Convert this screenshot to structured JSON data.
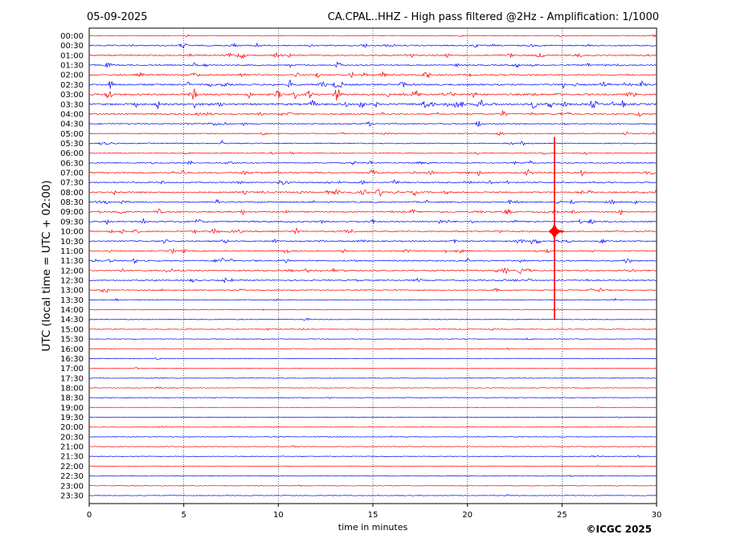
{
  "header": {
    "date": "05-09-2025",
    "title": "CA.CPAL..HHZ - High pass filtered @2Hz - Amplification: 1/1000"
  },
  "footer": {
    "copyright": "©ICGC 2025"
  },
  "chart_data": {
    "type": "line",
    "title": "CA.CPAL..HHZ - High pass filtered @2Hz - Amplification: 1/1000",
    "xlabel": "time in minutes",
    "ylabel": "UTC (local time = UTC + 02:00)",
    "xlim": [
      0,
      30
    ],
    "x_ticks": [
      "0",
      "5",
      "10",
      "15",
      "20",
      "25",
      "30"
    ],
    "vertical_gridlines_at": [
      5,
      10,
      15,
      20,
      25
    ],
    "row_labels": [
      "00:00",
      "00:30",
      "01:00",
      "01:30",
      "02:00",
      "02:30",
      "03:00",
      "03:30",
      "04:00",
      "04:30",
      "05:00",
      "05:30",
      "06:00",
      "06:30",
      "07:00",
      "07:30",
      "08:00",
      "08:30",
      "09:00",
      "09:30",
      "10:00",
      "10:30",
      "11:00",
      "11:30",
      "12:00",
      "12:30",
      "13:00",
      "13:30",
      "14:00",
      "14:30",
      "15:00",
      "15:30",
      "16:00",
      "16:30",
      "17:00",
      "17:30",
      "18:00",
      "18:30",
      "19:00",
      "19:30",
      "20:00",
      "20:30",
      "21:00",
      "21:30",
      "22:00",
      "22:30",
      "23:00",
      "23:30"
    ],
    "row_colors": [
      "#ff0000",
      "#0000ff"
    ],
    "row_activity": [
      0.12,
      0.45,
      0.5,
      0.4,
      0.5,
      0.7,
      0.75,
      0.85,
      0.5,
      0.35,
      0.25,
      0.25,
      0.2,
      0.3,
      0.45,
      0.45,
      0.6,
      0.45,
      0.5,
      0.5,
      0.5,
      0.45,
      0.35,
      0.45,
      0.45,
      0.35,
      0.3,
      0.1,
      0.06,
      0.08,
      0.12,
      0.04,
      0.03,
      0.03,
      0.02,
      0.02,
      0.02,
      0.02,
      0.02,
      0.02,
      0.02,
      0.02,
      0.02,
      0.05,
      0.02,
      0.02,
      0.02,
      0.02
    ],
    "event": {
      "minute": 24.6,
      "start_row": "05:30",
      "end_row": "14:30",
      "peak_row": "10:00"
    },
    "grid": true
  }
}
